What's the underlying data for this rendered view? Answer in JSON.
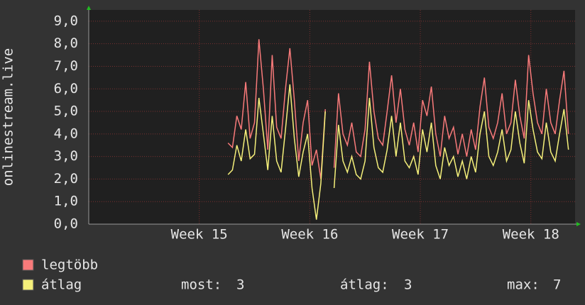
{
  "chart_data": {
    "type": "line",
    "y_label": "onlinestream.live",
    "xlim": [
      14,
      18.4
    ],
    "xticks": [
      {
        "value": 15,
        "label": "Week 15"
      },
      {
        "value": 16,
        "label": "Week 16"
      },
      {
        "value": 17,
        "label": "Week 17"
      },
      {
        "value": 18,
        "label": "Week 18"
      }
    ],
    "ylim": [
      0,
      9.5
    ],
    "yticks": [
      {
        "value": 0,
        "label": "0,0"
      },
      {
        "value": 1,
        "label": "1,0"
      },
      {
        "value": 2,
        "label": "2,0"
      },
      {
        "value": 3,
        "label": "3,0"
      },
      {
        "value": 4,
        "label": "4,0"
      },
      {
        "value": 5,
        "label": "5,0"
      },
      {
        "value": 6,
        "label": "6,0"
      },
      {
        "value": 7,
        "label": "7,0"
      },
      {
        "value": 8,
        "label": "8,0"
      },
      {
        "value": 9,
        "label": "9,0"
      }
    ],
    "grid": true,
    "x": [
      15.26,
      15.3,
      15.34,
      15.38,
      15.42,
      15.46,
      15.5,
      15.54,
      15.58,
      15.62,
      15.66,
      15.7,
      15.74,
      15.78,
      15.82,
      15.86,
      15.9,
      15.94,
      15.98,
      16.02,
      16.06,
      16.1,
      16.14,
      16.18,
      16.22,
      16.26,
      16.3,
      16.34,
      16.38,
      16.42,
      16.46,
      16.5,
      16.54,
      16.58,
      16.62,
      16.66,
      16.7,
      16.74,
      16.78,
      16.82,
      16.86,
      16.9,
      16.94,
      16.98,
      17.02,
      17.06,
      17.1,
      17.14,
      17.18,
      17.22,
      17.26,
      17.3,
      17.34,
      17.38,
      17.42,
      17.46,
      17.5,
      17.54,
      17.58,
      17.62,
      17.66,
      17.7,
      17.74,
      17.78,
      17.82,
      17.86,
      17.9,
      17.94,
      17.98,
      18.02,
      18.06,
      18.1,
      18.14,
      18.18,
      18.22,
      18.26,
      18.3,
      18.34
    ],
    "series": [
      {
        "name": "legtöbb",
        "color": "#f87a7a",
        "values": [
          3.6,
          3.4,
          4.8,
          4.2,
          6.3,
          3.8,
          4.5,
          8.2,
          6.0,
          3.3,
          7.5,
          4.3,
          3.8,
          6.0,
          7.8,
          5.5,
          2.8,
          4.5,
          5.5,
          2.6,
          3.3,
          2.0,
          5.1,
          null,
          2.5,
          5.8,
          4.0,
          3.5,
          4.5,
          3.2,
          3.0,
          4.2,
          7.2,
          5.0,
          3.8,
          3.5,
          5.0,
          6.6,
          4.5,
          6.0,
          4.2,
          3.5,
          4.5,
          3.2,
          5.5,
          4.8,
          6.1,
          4.0,
          3.0,
          4.8,
          3.8,
          4.3,
          3.1,
          4.0,
          3.0,
          4.2,
          3.3,
          5.2,
          6.5,
          4.3,
          3.8,
          4.5,
          5.8,
          4.0,
          4.5,
          6.4,
          4.8,
          3.8,
          7.5,
          5.8,
          4.5,
          4.0,
          6.0,
          4.5,
          4.0,
          5.5,
          6.8,
          4.0
        ]
      },
      {
        "name": "átlag",
        "color": "#f5f07a",
        "values": [
          2.2,
          2.4,
          3.5,
          2.8,
          4.2,
          2.9,
          3.1,
          5.6,
          4.0,
          2.4,
          4.8,
          2.8,
          2.3,
          4.2,
          6.2,
          3.8,
          2.1,
          3.2,
          4.0,
          1.6,
          0.2,
          1.8,
          5.0,
          null,
          1.6,
          4.4,
          2.8,
          2.3,
          3.0,
          2.2,
          2.0,
          2.8,
          5.6,
          3.4,
          2.5,
          2.3,
          3.3,
          4.8,
          3.0,
          4.5,
          2.8,
          2.5,
          3.0,
          2.2,
          4.2,
          3.2,
          4.5,
          2.6,
          2.0,
          3.4,
          2.6,
          3.0,
          2.1,
          2.8,
          2.0,
          3.0,
          2.3,
          4.0,
          5.0,
          3.0,
          2.6,
          3.2,
          4.2,
          2.8,
          3.3,
          5.0,
          3.6,
          2.7,
          5.5,
          4.2,
          3.2,
          2.9,
          4.5,
          3.2,
          2.8,
          4.0,
          5.1,
          3.3
        ]
      }
    ],
    "stats": [
      {
        "label": "most:",
        "value": 3
      },
      {
        "label": "átlag:",
        "value": 3
      },
      {
        "label": "max:",
        "value": 7
      }
    ]
  }
}
